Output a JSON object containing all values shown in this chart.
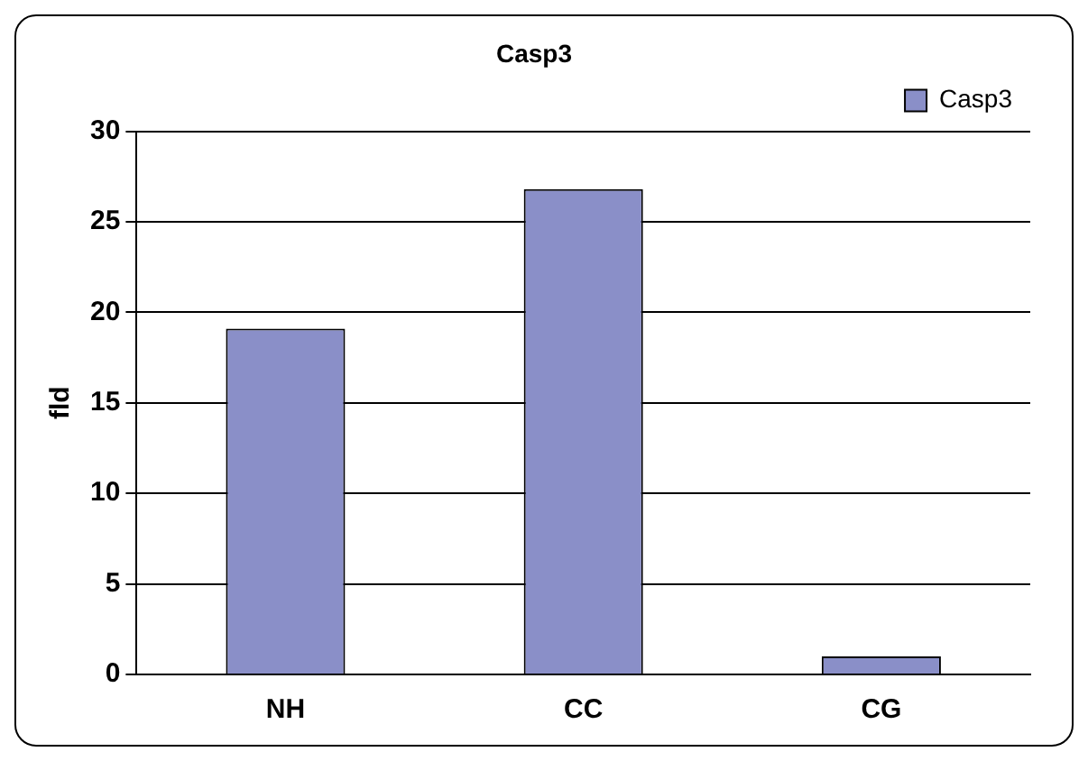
{
  "chart_data": {
    "type": "bar",
    "title": "Casp3",
    "ylabel": "fld",
    "categories": [
      "NH",
      "CC",
      "CG"
    ],
    "series": [
      {
        "name": "Casp3",
        "color": "#8a8fc8",
        "values": [
          19.1,
          26.8,
          1.0
        ]
      }
    ],
    "ylim": [
      0,
      30
    ],
    "yticks": [
      0,
      5,
      10,
      15,
      20,
      25,
      30
    ],
    "grid": "y",
    "legend": "top right"
  }
}
